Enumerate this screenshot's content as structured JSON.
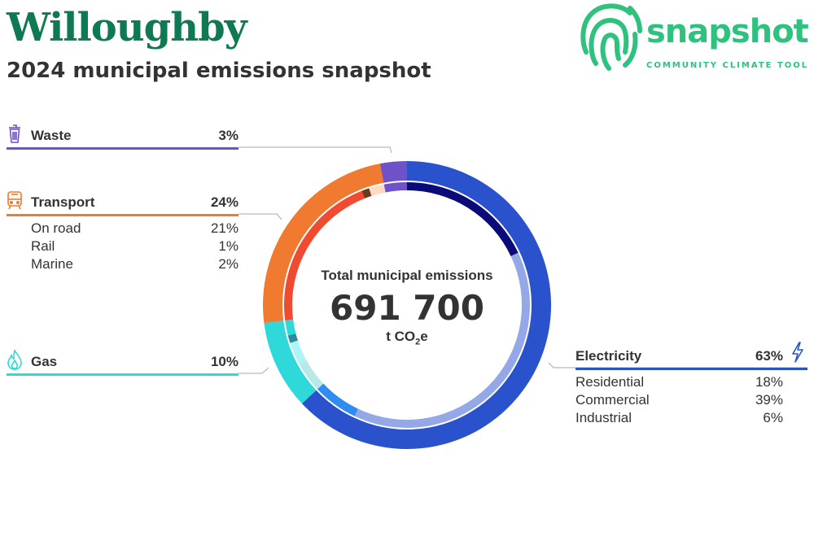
{
  "header": {
    "title": "Willoughby",
    "subtitle": "2024 municipal emissions snapshot"
  },
  "logo": {
    "name": "snapshot",
    "tagline": "COMMUNITY CLIMATE TOOL",
    "color": "#2ec27e"
  },
  "colors": {
    "title": "#0f7a52",
    "waste": "#6f52c8",
    "transport": "#f07a30",
    "gas": "#2fd9d9",
    "electricity": "#2952cc"
  },
  "center": {
    "label": "Total municipal emissions",
    "value": "691 700",
    "unit_prefix": "t CO",
    "unit_sub": "2",
    "unit_suffix": "e"
  },
  "chart_data": {
    "type": "pie",
    "total": 691700,
    "unit": "t CO2e",
    "categories": [
      {
        "key": "electricity",
        "label": "Electricity",
        "pct_label": "63%",
        "value": 63,
        "color": "#2952cc",
        "icon": "lightning-icon",
        "subsectors": [
          {
            "label": "Residential",
            "pct_label": "18%",
            "value": 18,
            "color": "#0a0a78"
          },
          {
            "label": "Commercial",
            "pct_label": "39%",
            "value": 39,
            "color": "#94a8e8"
          },
          {
            "label": "Industrial",
            "pct_label": "6%",
            "value": 6,
            "color": "#2f8cf0"
          }
        ]
      },
      {
        "key": "gas",
        "label": "Gas",
        "pct_label": "10%",
        "value": 10,
        "color": "#2fd9d9",
        "icon": "flame-icon",
        "subsectors": [
          {
            "label": "",
            "pct_label": "",
            "value": 4,
            "color": "#b8e8e8"
          },
          {
            "label": "",
            "pct_label": "",
            "value": 3,
            "color": "#aff5f5"
          },
          {
            "label": "",
            "pct_label": "",
            "value": 1,
            "color": "#2a8c9e"
          },
          {
            "label": "",
            "pct_label": "",
            "value": 2,
            "color": "#2fd9d9"
          }
        ]
      },
      {
        "key": "transport",
        "label": "Transport",
        "pct_label": "24%",
        "value": 24,
        "color": "#f07a30",
        "icon": "train-icon",
        "subsectors": [
          {
            "label": "On road",
            "pct_label": "21%",
            "value": 21,
            "color": "#f04a30"
          },
          {
            "label": "Rail",
            "pct_label": "1%",
            "value": 1,
            "color": "#6b3a1a"
          },
          {
            "label": "Marine",
            "pct_label": "2%",
            "value": 2,
            "color": "#ffd9c0"
          }
        ]
      },
      {
        "key": "waste",
        "label": "Waste",
        "pct_label": "3%",
        "value": 3,
        "color": "#6f52c8",
        "icon": "trash-icon",
        "subsectors": [
          {
            "label": "",
            "pct_label": "",
            "value": 3,
            "color": "#6f52c8"
          }
        ]
      }
    ]
  }
}
